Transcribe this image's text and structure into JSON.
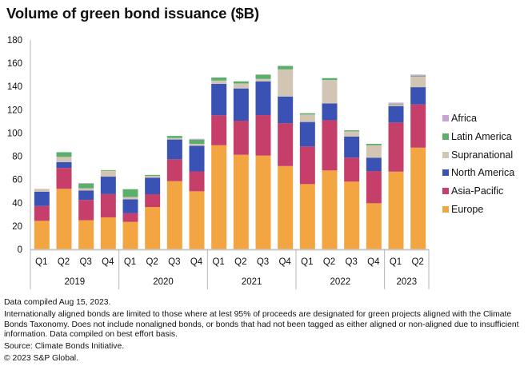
{
  "title": "Volume of green bond issuance ($B)",
  "chart_data": {
    "type": "bar",
    "stacked": true,
    "title": "Volume of green bond issuance ($B)",
    "xlabel": "",
    "ylabel": "",
    "ylim": [
      0,
      180
    ],
    "yticks": [
      0,
      20,
      40,
      60,
      80,
      100,
      120,
      140,
      160,
      180
    ],
    "grid": false,
    "legend_position": "right",
    "categories": [
      "Q1",
      "Q2",
      "Q3",
      "Q4",
      "Q1",
      "Q2",
      "Q3",
      "Q4",
      "Q1",
      "Q2",
      "Q3",
      "Q4",
      "Q1",
      "Q2",
      "Q3",
      "Q4",
      "Q1",
      "Q2"
    ],
    "groups": [
      {
        "label": "2019",
        "count": 4
      },
      {
        "label": "2020",
        "count": 4
      },
      {
        "label": "2021",
        "count": 4
      },
      {
        "label": "2022",
        "count": 4
      },
      {
        "label": "2023",
        "count": 2
      }
    ],
    "series": [
      {
        "name": "Europe",
        "color": "#F2A541",
        "values": [
          24.5,
          52.0,
          25.0,
          27.5,
          23.6,
          36.4,
          58.6,
          49.9,
          89.5,
          81.3,
          80.6,
          71.6,
          56.1,
          67.8,
          58.2,
          39.6,
          66.8,
          87.4
        ]
      },
      {
        "name": "Asia-Pacific",
        "color": "#C53F6A",
        "values": [
          12.8,
          18.0,
          17.5,
          20.0,
          7.4,
          11.0,
          18.8,
          17.1,
          25.7,
          29.3,
          34.8,
          36.9,
          32.3,
          43.2,
          20.6,
          27.7,
          42.2,
          37.2
        ]
      },
      {
        "name": "North America",
        "color": "#3A52B4",
        "values": [
          12.2,
          5.0,
          8.0,
          15.0,
          12.0,
          14.2,
          17.0,
          22.0,
          27.0,
          27.7,
          29.0,
          22.9,
          21.1,
          14.4,
          18.2,
          11.5,
          14.2,
          14.8
        ]
      },
      {
        "name": "Supranational",
        "color": "#D3C5B4",
        "values": [
          2.5,
          4.5,
          2.0,
          5.0,
          2.0,
          1.6,
          1.3,
          1.7,
          2.9,
          4.3,
          2.1,
          23.3,
          6.4,
          20.2,
          4.4,
          10.7,
          1.4,
          9.0
        ]
      },
      {
        "name": "Latin America",
        "color": "#5BAF6C",
        "values": [
          0.0,
          4.0,
          4.0,
          0.6,
          6.7,
          0.8,
          1.8,
          3.6,
          2.6,
          1.8,
          3.7,
          3.0,
          1.1,
          1.6,
          0.9,
          1.2,
          0.6,
          0.6
        ]
      },
      {
        "name": "Africa",
        "color": "#C9A3D4",
        "values": [
          0.0,
          0.0,
          0.5,
          0.0,
          0.0,
          0.0,
          0.0,
          0.7,
          0.0,
          0.0,
          0.0,
          0.0,
          0.0,
          0.0,
          0.0,
          0.0,
          0.9,
          1.2
        ]
      }
    ],
    "legend_order": [
      "Africa",
      "Latin America",
      "Supranational",
      "North America",
      "Asia-Pacific",
      "Europe"
    ]
  },
  "notes": {
    "compiled": "Data compiled Aug 15, 2023.",
    "description": "Internationally aligned bonds are limited to those where at lest 95% of proceeds are designated for green projects aligned with the Climate Bonds Taxonomy. Does not include nonaligned bonds, or bonds that had not been tagged as either aligned or non-aligned due to insufficient information. Data compiled on best effort basis.",
    "source": "Source: Climate Bonds Initiative.",
    "copyright": "© 2023 S&P Global."
  }
}
